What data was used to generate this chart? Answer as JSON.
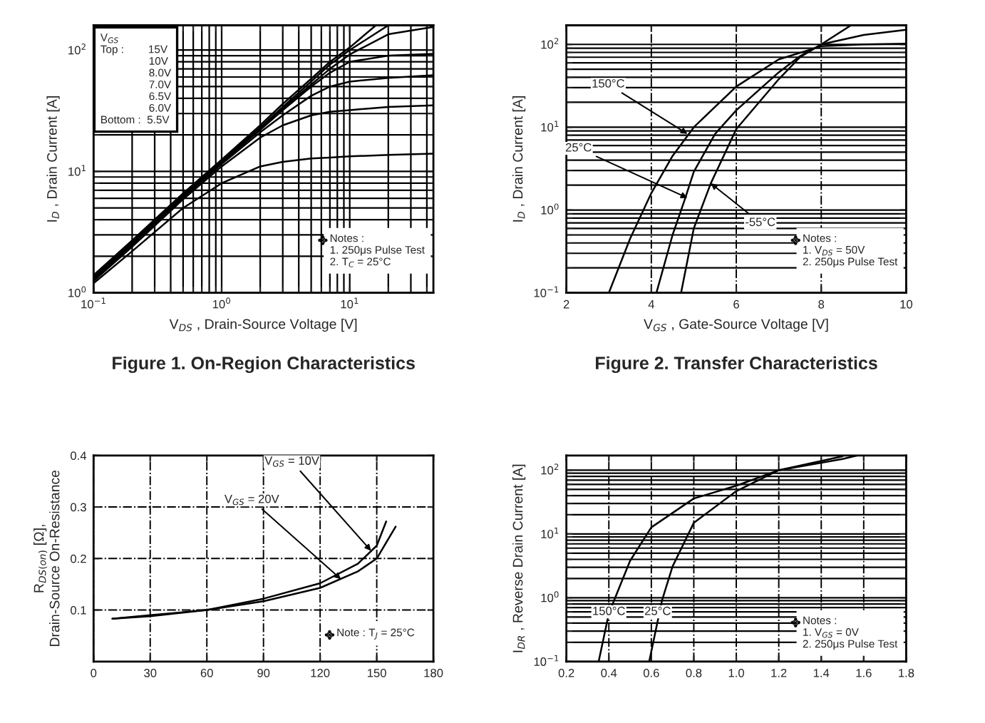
{
  "chart_data": [
    {
      "type": "line",
      "title": "Figure 1. On-Region Characteristics",
      "xlabel": "V$_{DS}$ , Drain-Source Voltage [V]",
      "ylabel": "I$_{D}$ , Drain Current [A]",
      "log": "xy",
      "grid": true,
      "marker": "none",
      "line_style": "solid",
      "xlim": [
        0.1,
        45
      ],
      "ylim": [
        1,
        160
      ],
      "xticks": [
        {
          "value": 0.1,
          "label": "10$^{−1}$"
        },
        {
          "value": 1,
          "label": "10$^{0}$"
        },
        {
          "value": 10,
          "label": "10$^{1}$"
        }
      ],
      "yticks": [
        {
          "value": 1,
          "label": "10$^{0}$"
        },
        {
          "value": 10,
          "label": "10$^{1}$"
        },
        {
          "value": 100,
          "label": "10$^{2}$"
        }
      ],
      "annotations": [
        "V$_{GS}$\nTop :        15V\n                10V\n                8.0V\n                7.0V\n                6.5V\n                6.0V\nBottom :  5.5V",
        "Notes :\n1. 250μs Pulse Test\n2. T$_{C}$ = 25°C"
      ],
      "series": [
        {
          "color": "#000000",
          "x": [
            0.1,
            0.2,
            0.5,
            1,
            2,
            3,
            5,
            7,
            10,
            16
          ],
          "values": [
            1.4,
            2.7,
            6.6,
            12.5,
            24,
            36,
            58,
            80,
            105,
            160
          ]
        },
        {
          "color": "#000000",
          "x": [
            0.1,
            0.2,
            0.5,
            1,
            2,
            3,
            5,
            7,
            10,
            20
          ],
          "values": [
            1.35,
            2.6,
            6.4,
            12.2,
            23,
            34,
            55,
            76,
            100,
            160
          ]
        },
        {
          "color": "#000000",
          "x": [
            0.1,
            0.2,
            0.5,
            1,
            2,
            3,
            5,
            7,
            10,
            20,
            45
          ],
          "values": [
            1.3,
            2.55,
            6.3,
            12,
            22.5,
            33,
            52,
            70,
            92,
            135,
            155
          ]
        },
        {
          "color": "#000000",
          "x": [
            0.1,
            0.2,
            0.5,
            1,
            2,
            3,
            5,
            7,
            10,
            20,
            45
          ],
          "values": [
            1.3,
            2.5,
            6.2,
            11.8,
            22,
            32,
            50,
            65,
            80,
            90,
            93
          ]
        },
        {
          "color": "#000000",
          "x": [
            0.1,
            0.2,
            0.5,
            1,
            2,
            3,
            5,
            7,
            10,
            20,
            45
          ],
          "values": [
            1.3,
            2.5,
            6.1,
            11.5,
            21,
            29,
            42,
            50,
            55,
            59,
            62
          ]
        },
        {
          "color": "#000000",
          "x": [
            0.1,
            0.2,
            0.5,
            1,
            2,
            3,
            5,
            7,
            10,
            20,
            45
          ],
          "values": [
            1.25,
            2.4,
            5.9,
            11,
            19,
            24,
            29,
            31,
            32,
            34,
            35
          ]
        },
        {
          "color": "#000000",
          "x": [
            0.1,
            0.2,
            0.5,
            1,
            2,
            3,
            5,
            7,
            10,
            20,
            45
          ],
          "values": [
            1.2,
            2.2,
            5,
            8,
            11,
            12,
            12.8,
            13,
            13.3,
            13.7,
            14
          ]
        }
      ]
    },
    {
      "type": "line",
      "title": "Figure 2. Transfer Characteristics",
      "xlabel": "V$_{GS}$ , Gate-Source Voltage [V]",
      "ylabel": "I$_{D}$ , Drain Current [A]",
      "log": "y",
      "grid": true,
      "marker": "none",
      "line_style": "solid",
      "xlim": [
        2,
        10
      ],
      "ylim": [
        0.1,
        170
      ],
      "xticks": [
        2,
        4,
        6,
        8,
        10
      ],
      "yticks": [
        {
          "value": 0.1,
          "label": "10$^{−1}$"
        },
        {
          "value": 1,
          "label": "10$^{0}$"
        },
        {
          "value": 10,
          "label": "10$^{1}$"
        },
        {
          "value": 100,
          "label": "10$^{2}$"
        }
      ],
      "annotations": [
        {
          "text": "150°C",
          "x": 4.85,
          "y": 8.3
        },
        {
          "text": "25°C",
          "x": 4.85,
          "y": 1.4
        },
        {
          "text": "-55°C",
          "x": 5.4,
          "y": 2.1
        },
        "Notes :\n1. V$_{DS}$ = 50V\n2. 250μs Pulse Test"
      ],
      "series": [
        {
          "color": "#000000",
          "x": [
            3.0,
            3.5,
            4.0,
            4.5,
            5,
            6,
            7,
            8,
            9,
            10
          ],
          "values": [
            0.1,
            0.45,
            1.6,
            4.5,
            10,
            31,
            66,
            95,
            100,
            102
          ]
        },
        {
          "color": "#000000",
          "x": [
            4.12,
            4.5,
            4.8,
            5,
            5.5,
            6,
            7,
            7.5,
            8,
            9,
            10
          ],
          "values": [
            0.1,
            0.5,
            1.4,
            2.9,
            8.3,
            16,
            46,
            72,
            100,
            130,
            150
          ]
        },
        {
          "color": "#000000",
          "x": [
            4.7,
            5.0,
            5.4,
            6,
            7,
            7.5,
            8,
            8.7
          ],
          "values": [
            0.1,
            0.6,
            2.1,
            9.5,
            38,
            70,
            100,
            170
          ]
        }
      ]
    },
    {
      "type": "line",
      "ylabel": "R$_{DS(on)}$ [Ω],\nDrain-Source On-Resistance",
      "grid": true,
      "marker": "none",
      "line_style": "solid",
      "xlim": [
        0,
        180
      ],
      "ylim": [
        0,
        0.4
      ],
      "xticks": [
        0,
        30,
        60,
        90,
        120,
        150,
        180
      ],
      "yticks": [
        0.1,
        0.2,
        0.3,
        0.4
      ],
      "annotations": [
        {
          "text": "V$_{GS}$ = 10V",
          "x": 147,
          "y": 0.215
        },
        {
          "text": "V$_{GS}$ = 20V",
          "x": 131,
          "y": 0.16
        },
        "Note : T$_{J}$ = 25°C"
      ],
      "series": [
        {
          "color": "#000000",
          "x": [
            10,
            30,
            60,
            90,
            120,
            140,
            150,
            155
          ],
          "values": [
            0.083,
            0.09,
            0.1,
            0.122,
            0.152,
            0.19,
            0.225,
            0.272
          ]
        },
        {
          "color": "#000000",
          "x": [
            10,
            30,
            60,
            90,
            120,
            140,
            150,
            160
          ],
          "values": [
            0.083,
            0.088,
            0.1,
            0.117,
            0.143,
            0.175,
            0.2,
            0.262
          ]
        }
      ]
    },
    {
      "type": "line",
      "ylabel": "I$_{DR}$ , Reverse Drain Current [A]",
      "log": "y",
      "grid": true,
      "marker": "none",
      "line_style": "solid",
      "xlim": [
        0.2,
        1.8
      ],
      "ylim": [
        0.1,
        170
      ],
      "xticks": [
        0.2,
        0.4,
        0.6,
        0.8,
        {
          "value": 1.0,
          "label": "1.0"
        },
        1.2,
        1.4,
        1.6,
        1.8
      ],
      "yticks": [
        {
          "value": 0.1,
          "label": "10$^{−1}$"
        },
        {
          "value": 1,
          "label": "10$^{0}$"
        },
        {
          "value": 10,
          "label": "10$^{1}$"
        },
        {
          "value": 100,
          "label": "10$^{2}$"
        }
      ],
      "annotations": [
        {
          "text": "150°C",
          "x": 0.4,
          "y": 0.6
        },
        {
          "text": "25°C",
          "x": 0.63,
          "y": 0.6
        },
        "Notes :\n1. V$_{GS}$ = 0V\n2. 250μs Pulse Test"
      ],
      "series": [
        {
          "color": "#000000",
          "x": [
            0.352,
            0.4,
            0.5,
            0.6,
            0.8,
            1.0,
            1.2,
            1.5
          ],
          "values": [
            0.1,
            0.57,
            3.8,
            12.7,
            36,
            57,
            100,
            165
          ]
        },
        {
          "color": "#000000",
          "x": [
            0.59,
            0.65,
            0.7,
            0.8,
            1.0,
            1.2,
            1.5,
            1.57
          ],
          "values": [
            0.1,
            0.9,
            3.1,
            15,
            47,
            100,
            150,
            170
          ]
        }
      ]
    }
  ]
}
